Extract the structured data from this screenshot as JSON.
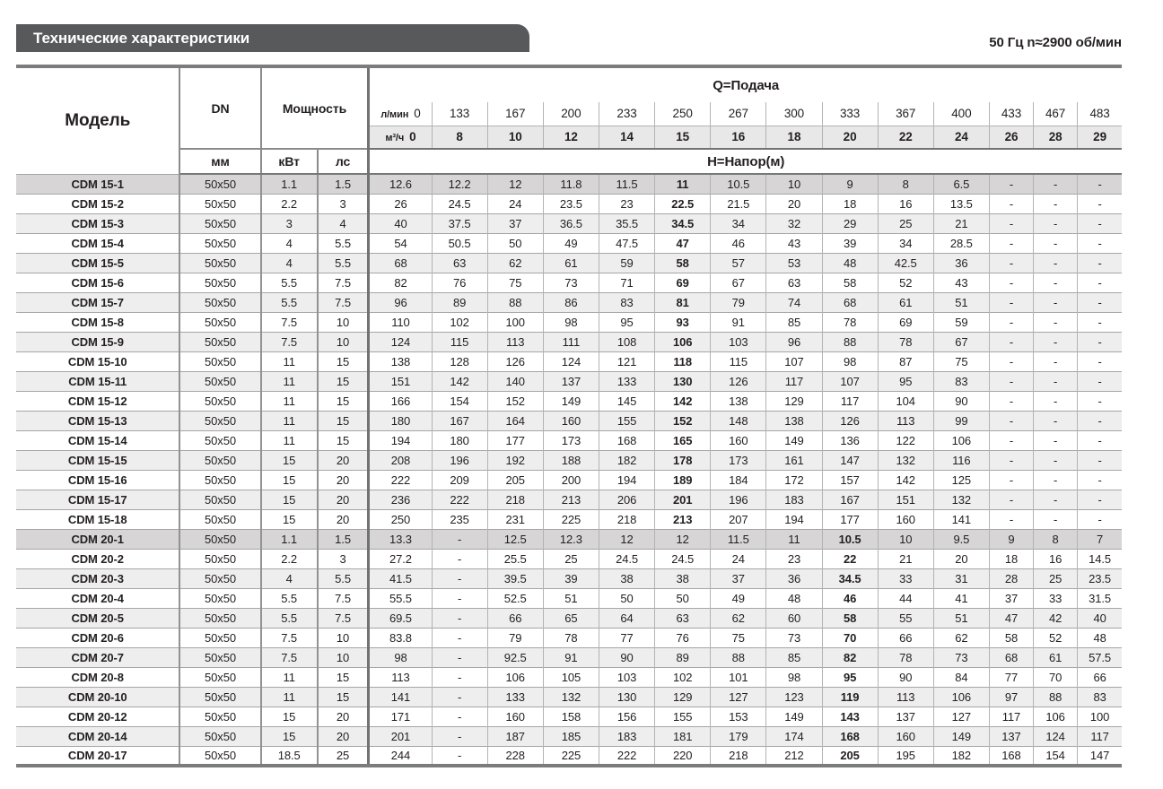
{
  "header": {
    "title": "Технические характеристики",
    "frequency_note": "50 Гц  n≈2900 об/мин"
  },
  "table": {
    "columns": {
      "model_label": "Модель",
      "dn_label": "DN",
      "dn_unit": "мм",
      "power_label": "Мощность",
      "power_kw_unit": "кВт",
      "power_hp_unit": "лс",
      "q_title": "Q=Подача",
      "h_title": "H=Напор(м)",
      "flow_lmin_unit": "л/мин",
      "flow_m3h_unit": "м³/ч",
      "flow_lmin": [
        "0",
        "133",
        "167",
        "200",
        "233",
        "250",
        "267",
        "300",
        "333",
        "367",
        "400",
        "433",
        "467",
        "483"
      ],
      "flow_m3h": [
        "0",
        "8",
        "10",
        "12",
        "14",
        "15",
        "16",
        "18",
        "20",
        "22",
        "24",
        "26",
        "28",
        "29"
      ]
    },
    "rows": [
      {
        "model": "CDM 15-1",
        "dn": "50x50",
        "kw": "1.1",
        "hp": "1.5",
        "bold_col": 5,
        "highlight": true,
        "head": [
          "12.6",
          "12.2",
          "12",
          "11.8",
          "11.5",
          "11",
          "10.5",
          "10",
          "9",
          "8",
          "6.5",
          "-",
          "-",
          "-"
        ]
      },
      {
        "model": "CDM 15-2",
        "dn": "50x50",
        "kw": "2.2",
        "hp": "3",
        "bold_col": 5,
        "head": [
          "26",
          "24.5",
          "24",
          "23.5",
          "23",
          "22.5",
          "21.5",
          "20",
          "18",
          "16",
          "13.5",
          "-",
          "-",
          "-"
        ]
      },
      {
        "model": "CDM 15-3",
        "dn": "50x50",
        "kw": "3",
        "hp": "4",
        "bold_col": 5,
        "head": [
          "40",
          "37.5",
          "37",
          "36.5",
          "35.5",
          "34.5",
          "34",
          "32",
          "29",
          "25",
          "21",
          "-",
          "-",
          "-"
        ]
      },
      {
        "model": "CDM 15-4",
        "dn": "50x50",
        "kw": "4",
        "hp": "5.5",
        "bold_col": 5,
        "head": [
          "54",
          "50.5",
          "50",
          "49",
          "47.5",
          "47",
          "46",
          "43",
          "39",
          "34",
          "28.5",
          "-",
          "-",
          "-"
        ]
      },
      {
        "model": "CDM 15-5",
        "dn": "50x50",
        "kw": "4",
        "hp": "5.5",
        "bold_col": 5,
        "head": [
          "68",
          "63",
          "62",
          "61",
          "59",
          "58",
          "57",
          "53",
          "48",
          "42.5",
          "36",
          "-",
          "-",
          "-"
        ]
      },
      {
        "model": "CDM 15-6",
        "dn": "50x50",
        "kw": "5.5",
        "hp": "7.5",
        "bold_col": 5,
        "head": [
          "82",
          "76",
          "75",
          "73",
          "71",
          "69",
          "67",
          "63",
          "58",
          "52",
          "43",
          "-",
          "-",
          "-"
        ]
      },
      {
        "model": "CDM 15-7",
        "dn": "50x50",
        "kw": "5.5",
        "hp": "7.5",
        "bold_col": 5,
        "head": [
          "96",
          "89",
          "88",
          "86",
          "83",
          "81",
          "79",
          "74",
          "68",
          "61",
          "51",
          "-",
          "-",
          "-"
        ]
      },
      {
        "model": "CDM 15-8",
        "dn": "50x50",
        "kw": "7.5",
        "hp": "10",
        "bold_col": 5,
        "head": [
          "110",
          "102",
          "100",
          "98",
          "95",
          "93",
          "91",
          "85",
          "78",
          "69",
          "59",
          "-",
          "-",
          "-"
        ]
      },
      {
        "model": "CDM 15-9",
        "dn": "50x50",
        "kw": "7.5",
        "hp": "10",
        "bold_col": 5,
        "head": [
          "124",
          "115",
          "113",
          "111",
          "108",
          "106",
          "103",
          "96",
          "88",
          "78",
          "67",
          "-",
          "-",
          "-"
        ]
      },
      {
        "model": "CDM 15-10",
        "dn": "50x50",
        "kw": "11",
        "hp": "15",
        "bold_col": 5,
        "head": [
          "138",
          "128",
          "126",
          "124",
          "121",
          "118",
          "115",
          "107",
          "98",
          "87",
          "75",
          "-",
          "-",
          "-"
        ]
      },
      {
        "model": "CDM 15-11",
        "dn": "50x50",
        "kw": "11",
        "hp": "15",
        "bold_col": 5,
        "head": [
          "151",
          "142",
          "140",
          "137",
          "133",
          "130",
          "126",
          "117",
          "107",
          "95",
          "83",
          "-",
          "-",
          "-"
        ]
      },
      {
        "model": "CDM 15-12",
        "dn": "50x50",
        "kw": "11",
        "hp": "15",
        "bold_col": 5,
        "head": [
          "166",
          "154",
          "152",
          "149",
          "145",
          "142",
          "138",
          "129",
          "117",
          "104",
          "90",
          "-",
          "-",
          "-"
        ]
      },
      {
        "model": "CDM 15-13",
        "dn": "50x50",
        "kw": "11",
        "hp": "15",
        "bold_col": 5,
        "head": [
          "180",
          "167",
          "164",
          "160",
          "155",
          "152",
          "148",
          "138",
          "126",
          "113",
          "99",
          "-",
          "-",
          "-"
        ]
      },
      {
        "model": "CDM 15-14",
        "dn": "50x50",
        "kw": "11",
        "hp": "15",
        "bold_col": 5,
        "head": [
          "194",
          "180",
          "177",
          "173",
          "168",
          "165",
          "160",
          "149",
          "136",
          "122",
          "106",
          "-",
          "-",
          "-"
        ]
      },
      {
        "model": "CDM 15-15",
        "dn": "50x50",
        "kw": "15",
        "hp": "20",
        "bold_col": 5,
        "head": [
          "208",
          "196",
          "192",
          "188",
          "182",
          "178",
          "173",
          "161",
          "147",
          "132",
          "116",
          "-",
          "-",
          "-"
        ]
      },
      {
        "model": "CDM 15-16",
        "dn": "50x50",
        "kw": "15",
        "hp": "20",
        "bold_col": 5,
        "head": [
          "222",
          "209",
          "205",
          "200",
          "194",
          "189",
          "184",
          "172",
          "157",
          "142",
          "125",
          "-",
          "-",
          "-"
        ]
      },
      {
        "model": "CDM 15-17",
        "dn": "50x50",
        "kw": "15",
        "hp": "20",
        "bold_col": 5,
        "head": [
          "236",
          "222",
          "218",
          "213",
          "206",
          "201",
          "196",
          "183",
          "167",
          "151",
          "132",
          "-",
          "-",
          "-"
        ]
      },
      {
        "model": "CDM 15-18",
        "dn": "50x50",
        "kw": "15",
        "hp": "20",
        "bold_col": 5,
        "head": [
          "250",
          "235",
          "231",
          "225",
          "218",
          "213",
          "207",
          "194",
          "177",
          "160",
          "141",
          "-",
          "-",
          "-"
        ]
      },
      {
        "model": "CDM 20-1",
        "dn": "50x50",
        "kw": "1.1",
        "hp": "1.5",
        "bold_col": 8,
        "highlight": true,
        "head": [
          "13.3",
          "-",
          "12.5",
          "12.3",
          "12",
          "12",
          "11.5",
          "11",
          "10.5",
          "10",
          "9.5",
          "9",
          "8",
          "7"
        ]
      },
      {
        "model": "CDM 20-2",
        "dn": "50x50",
        "kw": "2.2",
        "hp": "3",
        "bold_col": 8,
        "head": [
          "27.2",
          "-",
          "25.5",
          "25",
          "24.5",
          "24.5",
          "24",
          "23",
          "22",
          "21",
          "20",
          "18",
          "16",
          "14.5"
        ]
      },
      {
        "model": "CDM 20-3",
        "dn": "50x50",
        "kw": "4",
        "hp": "5.5",
        "bold_col": 8,
        "head": [
          "41.5",
          "-",
          "39.5",
          "39",
          "38",
          "38",
          "37",
          "36",
          "34.5",
          "33",
          "31",
          "28",
          "25",
          "23.5"
        ]
      },
      {
        "model": "CDM 20-4",
        "dn": "50x50",
        "kw": "5.5",
        "hp": "7.5",
        "bold_col": 8,
        "head": [
          "55.5",
          "-",
          "52.5",
          "51",
          "50",
          "50",
          "49",
          "48",
          "46",
          "44",
          "41",
          "37",
          "33",
          "31.5"
        ]
      },
      {
        "model": "CDM 20-5",
        "dn": "50x50",
        "kw": "5.5",
        "hp": "7.5",
        "bold_col": 8,
        "head": [
          "69.5",
          "-",
          "66",
          "65",
          "64",
          "63",
          "62",
          "60",
          "58",
          "55",
          "51",
          "47",
          "42",
          "40"
        ]
      },
      {
        "model": "CDM 20-6",
        "dn": "50x50",
        "kw": "7.5",
        "hp": "10",
        "bold_col": 8,
        "head": [
          "83.8",
          "-",
          "79",
          "78",
          "77",
          "76",
          "75",
          "73",
          "70",
          "66",
          "62",
          "58",
          "52",
          "48"
        ]
      },
      {
        "model": "CDM 20-7",
        "dn": "50x50",
        "kw": "7.5",
        "hp": "10",
        "bold_col": 8,
        "head": [
          "98",
          "-",
          "92.5",
          "91",
          "90",
          "89",
          "88",
          "85",
          "82",
          "78",
          "73",
          "68",
          "61",
          "57.5"
        ]
      },
      {
        "model": "CDM 20-8",
        "dn": "50x50",
        "kw": "11",
        "hp": "15",
        "bold_col": 8,
        "head": [
          "113",
          "-",
          "106",
          "105",
          "103",
          "102",
          "101",
          "98",
          "95",
          "90",
          "84",
          "77",
          "70",
          "66"
        ]
      },
      {
        "model": "CDM 20-10",
        "dn": "50x50",
        "kw": "11",
        "hp": "15",
        "bold_col": 8,
        "head": [
          "141",
          "-",
          "133",
          "132",
          "130",
          "129",
          "127",
          "123",
          "119",
          "113",
          "106",
          "97",
          "88",
          "83"
        ]
      },
      {
        "model": "CDM 20-12",
        "dn": "50x50",
        "kw": "15",
        "hp": "20",
        "bold_col": 8,
        "head": [
          "171",
          "-",
          "160",
          "158",
          "156",
          "155",
          "153",
          "149",
          "143",
          "137",
          "127",
          "117",
          "106",
          "100"
        ]
      },
      {
        "model": "CDM 20-14",
        "dn": "50x50",
        "kw": "15",
        "hp": "20",
        "bold_col": 8,
        "head": [
          "201",
          "-",
          "187",
          "185",
          "183",
          "181",
          "179",
          "174",
          "168",
          "160",
          "149",
          "137",
          "124",
          "117"
        ]
      },
      {
        "model": "CDM 20-17",
        "dn": "50x50",
        "kw": "18.5",
        "hp": "25",
        "bold_col": 8,
        "head": [
          "244",
          "-",
          "228",
          "225",
          "222",
          "220",
          "218",
          "212",
          "205",
          "195",
          "182",
          "168",
          "154",
          "147"
        ]
      }
    ]
  }
}
